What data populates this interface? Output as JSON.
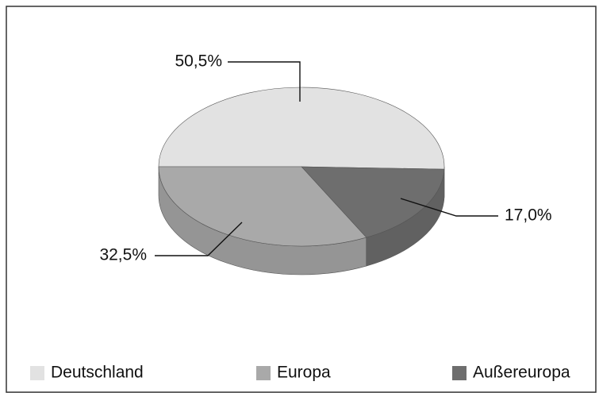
{
  "chart_data": {
    "type": "pie3d",
    "categories": [
      "Deutschland",
      "Außereuropa",
      "Europa"
    ],
    "values": [
      50.5,
      17.0,
      32.5
    ],
    "value_labels": [
      "50,5%",
      "17,0%",
      "32,5%"
    ],
    "colors": [
      "#e2e2e2",
      "#6e6e6e",
      "#a9a9a9"
    ],
    "legend": "bottom"
  }
}
